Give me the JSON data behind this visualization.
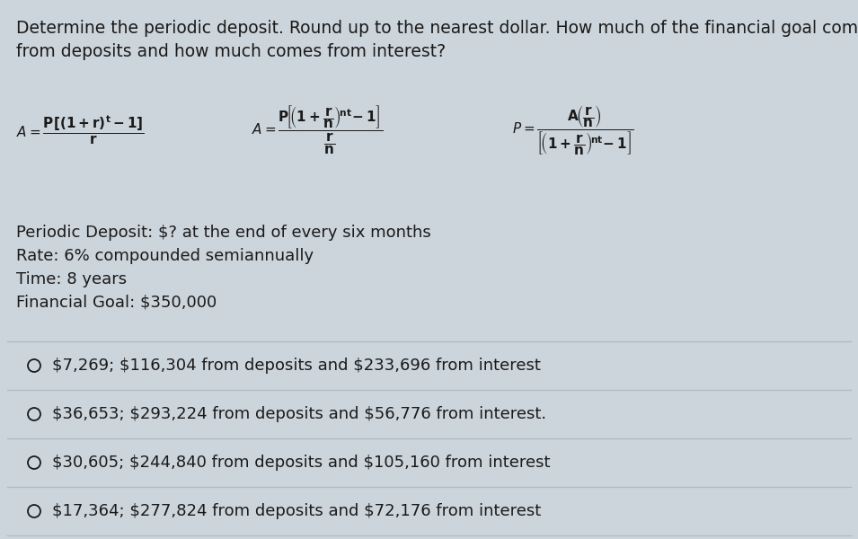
{
  "title_line1": "Determine the periodic deposit. Round up to the nearest dollar. How much of the financial goal comes",
  "title_line2": "from deposits and how much comes from interest?",
  "problem_lines": [
    "Periodic Deposit: $? at the end of every six months",
    "Rate: 6% compounded semiannually",
    "Time: 8 years",
    "Financial Goal: $350,000"
  ],
  "options": [
    "$7,269; $116,304 from deposits and $233,696 from interest",
    "$36,653; $293,224 from deposits and $56,776 from interest.",
    "$30,605; $244,840 from deposits and $105,160 from interest",
    "$17,364; $277,824 from deposits and $72,176 from interest"
  ],
  "bg_color": "#cdd5dc",
  "text_color": "#1a1a1a",
  "divider_color": "#b0b8c0",
  "font_size_title": 13.5,
  "font_size_body": 13,
  "font_size_options": 13,
  "font_size_formula": 11
}
